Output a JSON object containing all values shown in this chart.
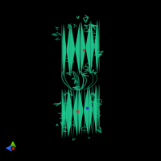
{
  "background_color": "#000000",
  "figure_size": [
    2.0,
    2.0
  ],
  "dpi": 100,
  "protein_color_main": "#1aaa7a",
  "protein_color_light": "#20c990",
  "protein_color_dark": "#0d7a55",
  "protein_color_mid": "#16b882",
  "axis_x_color": "#3366ff",
  "axis_y_color": "#66cc00",
  "axis_origin_color": "#cc2200",
  "small_dots_color_red": "#cc3333",
  "small_dots_color_blue": "#3333cc"
}
